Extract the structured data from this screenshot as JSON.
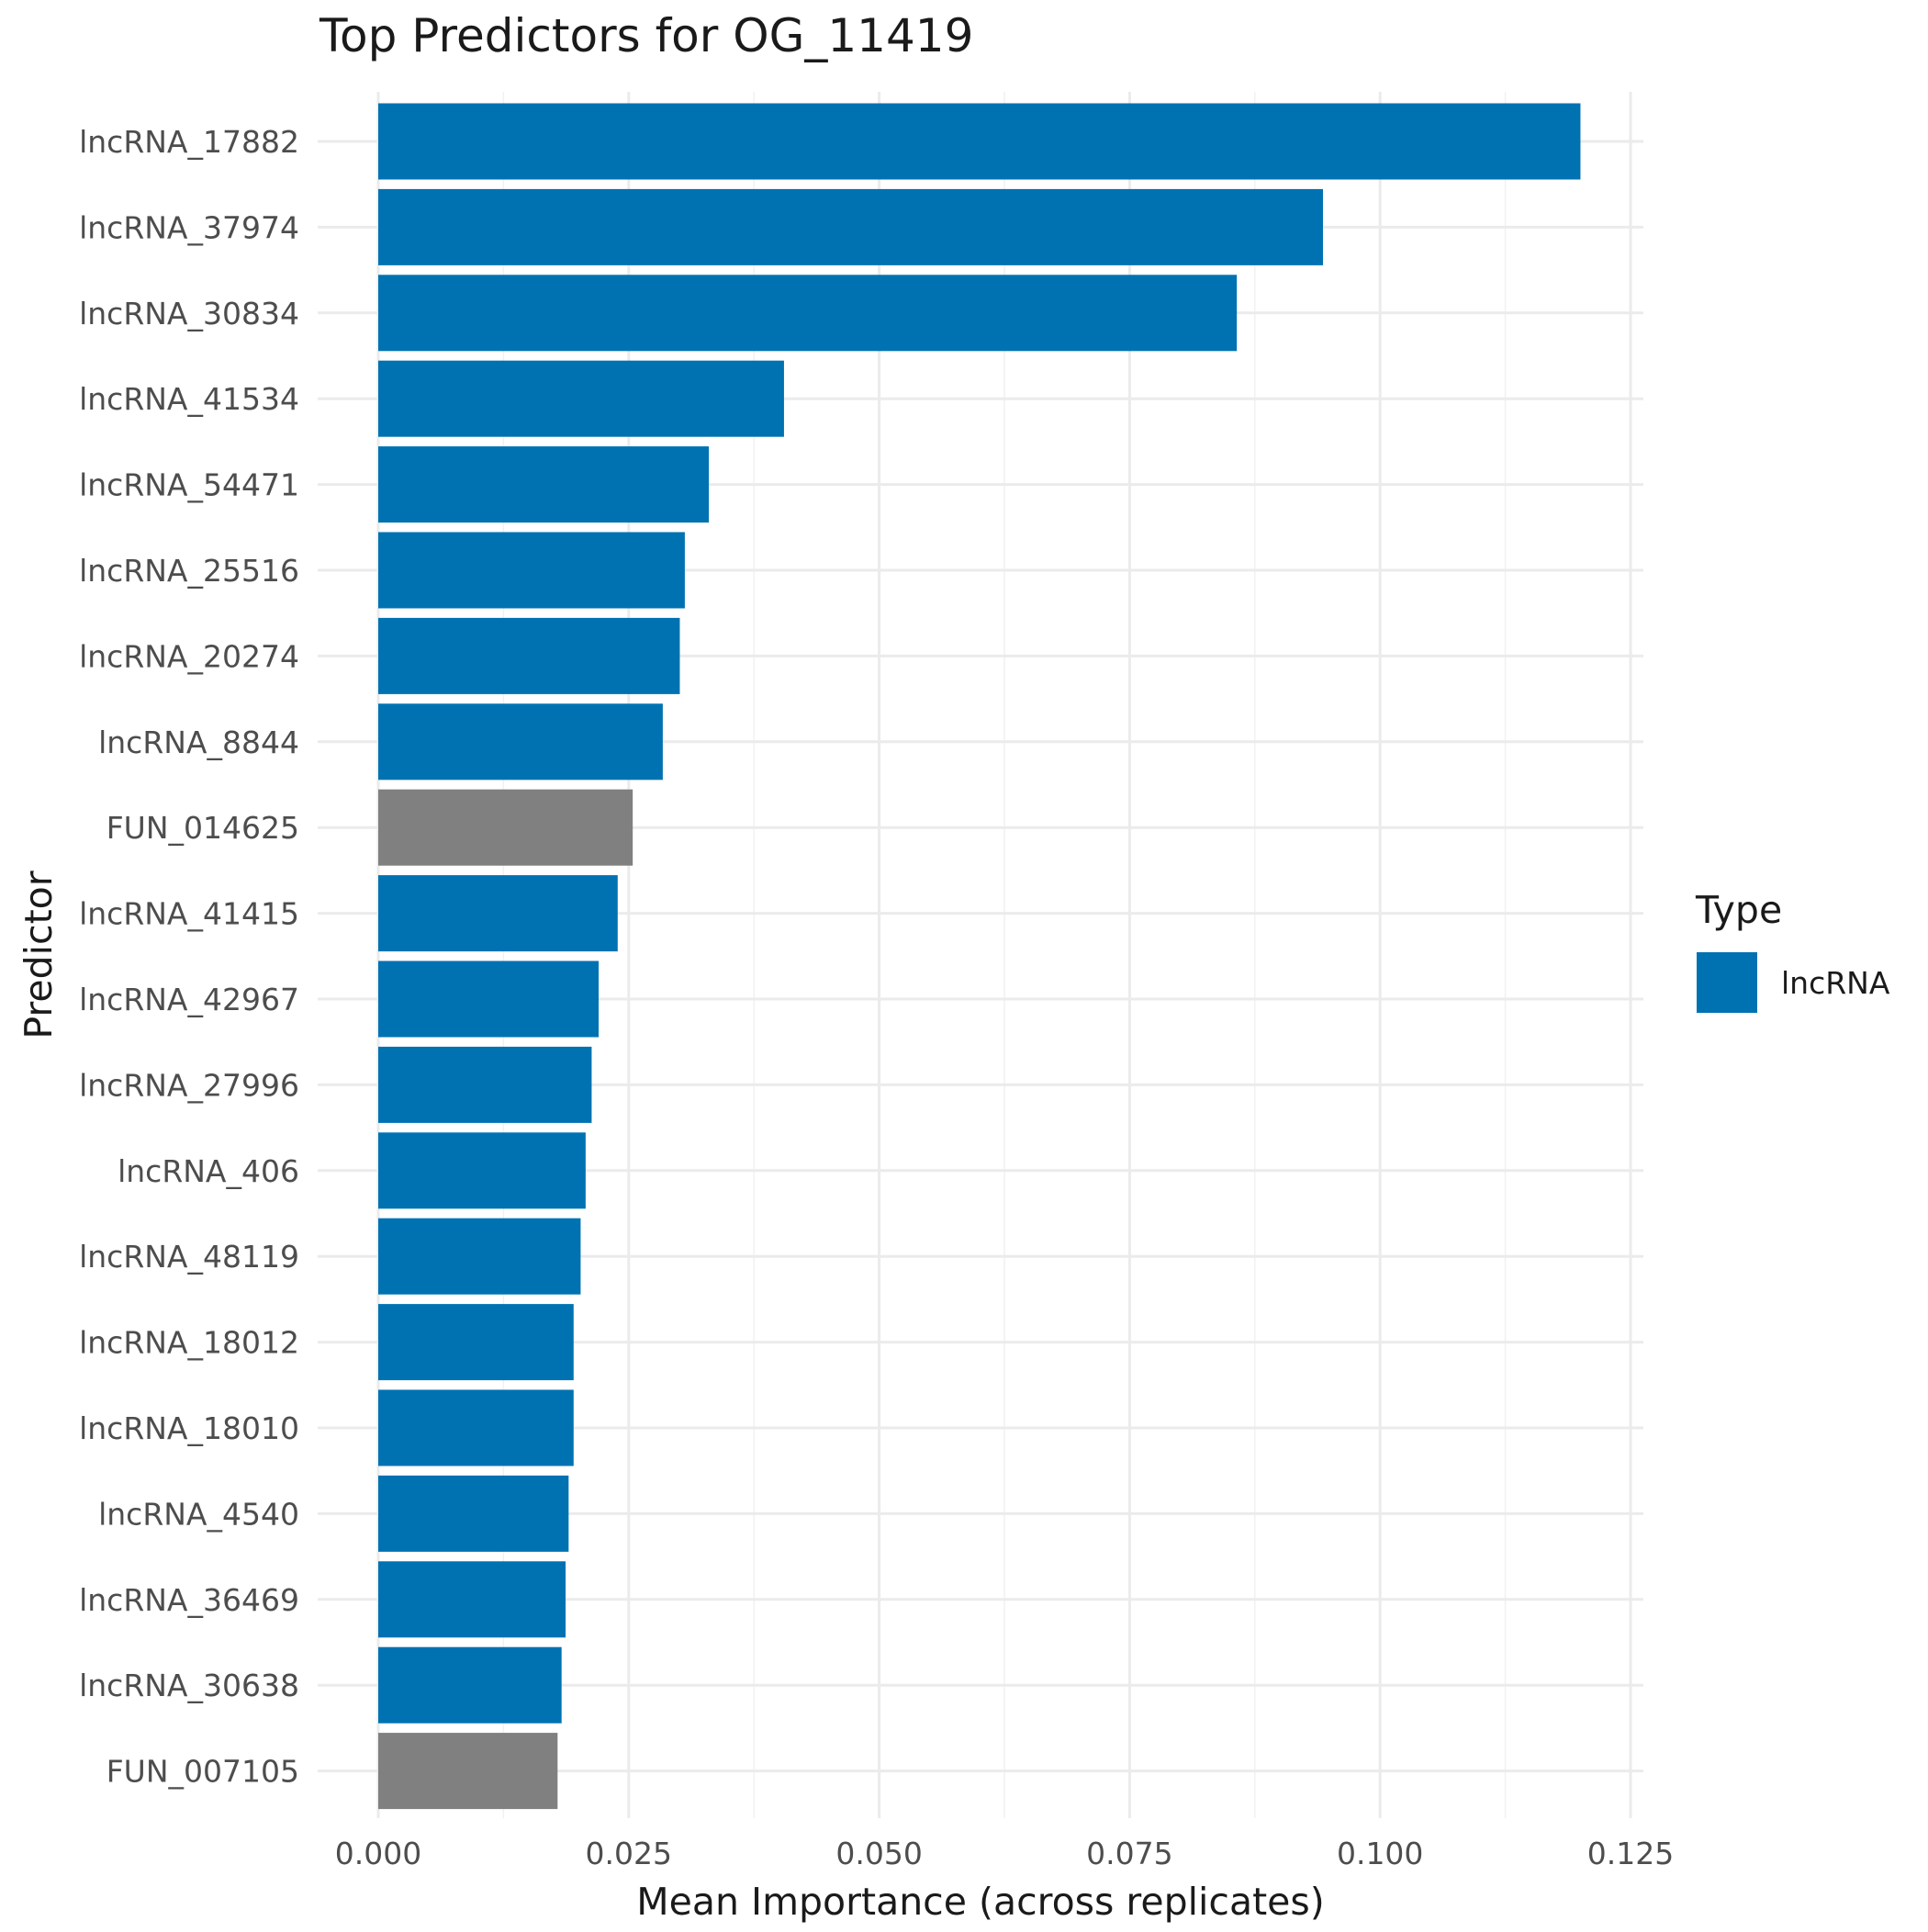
{
  "chart_data": {
    "type": "bar",
    "orientation": "horizontal",
    "title": "Top Predictors for OG_11419",
    "xlabel": "Mean Importance (across replicates)",
    "ylabel": "Predictor",
    "xlim": [
      0,
      0.125
    ],
    "x_ticks": [
      "0.000",
      "0.025",
      "0.050",
      "0.075",
      "0.100",
      "0.125"
    ],
    "x_tick_values": [
      0,
      0.025,
      0.05,
      0.075,
      0.1,
      0.125
    ],
    "grid": true,
    "legend": {
      "title": "Type",
      "placement": "right",
      "entries": [
        {
          "label": "lncRNA",
          "color": "#0072b2"
        }
      ]
    },
    "colors": {
      "lncRNA": "#0072b2",
      "other": "#808080"
    },
    "categories": [
      "lncRNA_17882",
      "lncRNA_37974",
      "lncRNA_30834",
      "lncRNA_41534",
      "lncRNA_54471",
      "lncRNA_25516",
      "lncRNA_20274",
      "lncRNA_8844",
      "FUN_014625",
      "lncRNA_41415",
      "lncRNA_42967",
      "lncRNA_27996",
      "lncRNA_406",
      "lncRNA_48119",
      "lncRNA_18012",
      "lncRNA_18010",
      "lncRNA_4540",
      "lncRNA_36469",
      "lncRNA_30638",
      "FUN_007105"
    ],
    "values": [
      0.12,
      0.0943,
      0.0857,
      0.0405,
      0.033,
      0.0306,
      0.0301,
      0.0284,
      0.0254,
      0.0239,
      0.022,
      0.0213,
      0.0207,
      0.0202,
      0.0195,
      0.0195,
      0.019,
      0.0187,
      0.0183,
      0.0179
    ],
    "types": [
      "lncRNA",
      "lncRNA",
      "lncRNA",
      "lncRNA",
      "lncRNA",
      "lncRNA",
      "lncRNA",
      "lncRNA",
      "other",
      "lncRNA",
      "lncRNA",
      "lncRNA",
      "lncRNA",
      "lncRNA",
      "lncRNA",
      "lncRNA",
      "lncRNA",
      "lncRNA",
      "lncRNA",
      "other"
    ]
  }
}
